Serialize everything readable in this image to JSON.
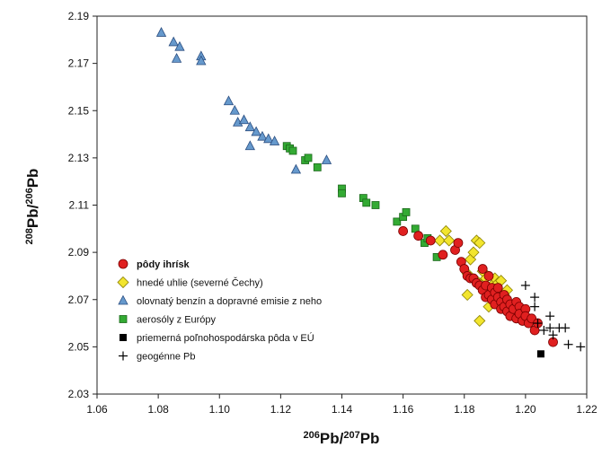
{
  "chart_data": {
    "type": "scatter",
    "xlabel": {
      "sup1": "206",
      "base1": "Pb/",
      "sup2": "207",
      "base2": "Pb"
    },
    "ylabel": {
      "sup1": "208",
      "base1": "Pb/",
      "sup2": "206",
      "base2": "Pb"
    },
    "xlim": [
      1.06,
      1.22
    ],
    "ylim": [
      2.03,
      2.19
    ],
    "xticks": [
      "1.06",
      "1.08",
      "1.10",
      "1.12",
      "1.14",
      "1.16",
      "1.18",
      "1.20",
      "1.22"
    ],
    "yticks": [
      "2.03",
      "2.05",
      "2.07",
      "2.09",
      "2.11",
      "2.13",
      "2.15",
      "2.17",
      "2.19"
    ],
    "grid": false,
    "legend_position": "bottom-left",
    "series": [
      {
        "name": "pôdy ihrísk",
        "marker": "circle",
        "color": "#e02020",
        "points": [
          [
            1.16,
            2.099
          ],
          [
            1.165,
            2.097
          ],
          [
            1.169,
            2.095
          ],
          [
            1.173,
            2.089
          ],
          [
            1.177,
            2.091
          ],
          [
            1.178,
            2.094
          ],
          [
            1.179,
            2.086
          ],
          [
            1.18,
            2.083
          ],
          [
            1.181,
            2.08
          ],
          [
            1.182,
            2.079
          ],
          [
            1.183,
            2.079
          ],
          [
            1.184,
            2.077
          ],
          [
            1.185,
            2.076
          ],
          [
            1.186,
            2.083
          ],
          [
            1.186,
            2.074
          ],
          [
            1.187,
            2.076
          ],
          [
            1.187,
            2.071
          ],
          [
            1.188,
            2.08
          ],
          [
            1.188,
            2.072
          ],
          [
            1.189,
            2.075
          ],
          [
            1.189,
            2.07
          ],
          [
            1.19,
            2.073
          ],
          [
            1.19,
            2.068
          ],
          [
            1.191,
            2.071
          ],
          [
            1.191,
            2.075
          ],
          [
            1.192,
            2.069
          ],
          [
            1.192,
            2.066
          ],
          [
            1.193,
            2.072
          ],
          [
            1.193,
            2.067
          ],
          [
            1.194,
            2.07
          ],
          [
            1.194,
            2.065
          ],
          [
            1.195,
            2.068
          ],
          [
            1.195,
            2.063
          ],
          [
            1.196,
            2.066
          ],
          [
            1.197,
            2.069
          ],
          [
            1.197,
            2.062
          ],
          [
            1.198,
            2.067
          ],
          [
            1.198,
            2.064
          ],
          [
            1.199,
            2.061
          ],
          [
            1.2,
            2.066
          ],
          [
            1.2,
            2.063
          ],
          [
            1.201,
            2.06
          ],
          [
            1.202,
            2.062
          ],
          [
            1.203,
            2.057
          ],
          [
            1.204,
            2.06
          ],
          [
            1.209,
            2.052
          ]
        ]
      },
      {
        "name": "hnedé uhlie (severné Čechy)",
        "marker": "diamond",
        "color": "#f2e52e",
        "points": [
          [
            1.172,
            2.095
          ],
          [
            1.174,
            2.099
          ],
          [
            1.175,
            2.095
          ],
          [
            1.181,
            2.081
          ],
          [
            1.181,
            2.072
          ],
          [
            1.182,
            2.087
          ],
          [
            1.183,
            2.09
          ],
          [
            1.184,
            2.078
          ],
          [
            1.184,
            2.095
          ],
          [
            1.185,
            2.094
          ],
          [
            1.185,
            2.061
          ],
          [
            1.186,
            2.082
          ],
          [
            1.186,
            2.075
          ],
          [
            1.187,
            2.079
          ],
          [
            1.188,
            2.074
          ],
          [
            1.188,
            2.067
          ],
          [
            1.189,
            2.076
          ],
          [
            1.19,
            2.079
          ],
          [
            1.191,
            2.077
          ],
          [
            1.191,
            2.073
          ],
          [
            1.192,
            2.078
          ],
          [
            1.193,
            2.072
          ],
          [
            1.194,
            2.074
          ]
        ]
      },
      {
        "name": "olovnatý benzín a dopravné emisie z neho",
        "marker": "triangle",
        "color": "#6699cc",
        "points": [
          [
            1.081,
            2.183
          ],
          [
            1.085,
            2.179
          ],
          [
            1.086,
            2.172
          ],
          [
            1.087,
            2.177
          ],
          [
            1.094,
            2.173
          ],
          [
            1.094,
            2.171
          ],
          [
            1.103,
            2.154
          ],
          [
            1.105,
            2.15
          ],
          [
            1.106,
            2.145
          ],
          [
            1.108,
            2.146
          ],
          [
            1.11,
            2.143
          ],
          [
            1.11,
            2.135
          ],
          [
            1.112,
            2.141
          ],
          [
            1.114,
            2.139
          ],
          [
            1.116,
            2.138
          ],
          [
            1.118,
            2.137
          ],
          [
            1.125,
            2.125
          ],
          [
            1.135,
            2.129
          ]
        ]
      },
      {
        "name": "aerosóly z Európy",
        "marker": "square",
        "color": "#33aa33",
        "points": [
          [
            1.122,
            2.135
          ],
          [
            1.123,
            2.134
          ],
          [
            1.124,
            2.133
          ],
          [
            1.128,
            2.129
          ],
          [
            1.129,
            2.13
          ],
          [
            1.132,
            2.126
          ],
          [
            1.14,
            2.117
          ],
          [
            1.14,
            2.115
          ],
          [
            1.147,
            2.113
          ],
          [
            1.148,
            2.111
          ],
          [
            1.151,
            2.11
          ],
          [
            1.158,
            2.103
          ],
          [
            1.16,
            2.105
          ],
          [
            1.161,
            2.107
          ],
          [
            1.164,
            2.1
          ],
          [
            1.167,
            2.094
          ],
          [
            1.168,
            2.096
          ],
          [
            1.171,
            2.088
          ]
        ]
      },
      {
        "name": "priemerná poľnohospodárska pôda v EÚ",
        "marker": "filled-square",
        "color": "#000000",
        "points": [
          [
            1.205,
            2.047
          ]
        ]
      },
      {
        "name": "geogénne Pb",
        "marker": "plus",
        "color": "#000000",
        "points": [
          [
            1.2,
            2.076
          ],
          [
            1.203,
            2.071
          ],
          [
            1.203,
            2.067
          ],
          [
            1.204,
            2.06
          ],
          [
            1.206,
            2.057
          ],
          [
            1.208,
            2.063
          ],
          [
            1.208,
            2.058
          ],
          [
            1.209,
            2.055
          ],
          [
            1.211,
            2.058
          ],
          [
            1.213,
            2.058
          ],
          [
            1.214,
            2.051
          ],
          [
            1.218,
            2.05
          ]
        ]
      }
    ]
  }
}
